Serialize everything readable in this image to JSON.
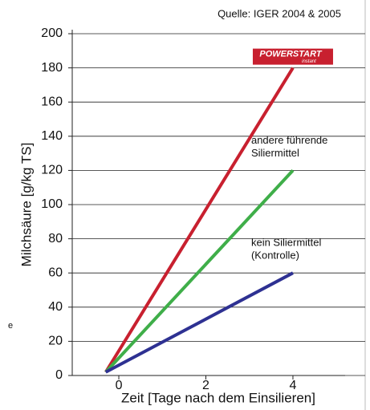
{
  "chart_data": {
    "type": "line",
    "source": "Quelle: IGER 2004 & 2005",
    "y_label": "Milchsäure [g/kg TS]",
    "x_label": "Zeit [Tage nach dem Einsilieren]",
    "fragment": "e",
    "xlim": [
      -1.07,
      5.66
    ],
    "xticks": [
      0,
      2,
      4
    ],
    "ylim": [
      0,
      200
    ],
    "yticks": [
      0,
      20,
      40,
      60,
      80,
      100,
      120,
      140,
      160,
      180,
      200
    ],
    "grid": true,
    "series": [
      {
        "label": [
          "POWERSTART",
          "instant"
        ],
        "color": "#c8202f",
        "x": [
          -0.3,
          4
        ],
        "values": [
          2,
          180
        ]
      },
      {
        "label": [
          "andere führende",
          "Siliermittel"
        ],
        "color": "#3fae49",
        "x": [
          -0.3,
          4
        ],
        "values": [
          2,
          120
        ]
      },
      {
        "label": [
          "kein Siliermittel",
          "(Kontrolle)"
        ],
        "color": "#2e3192",
        "x": [
          -0.3,
          4
        ],
        "values": [
          2,
          60
        ]
      }
    ]
  }
}
